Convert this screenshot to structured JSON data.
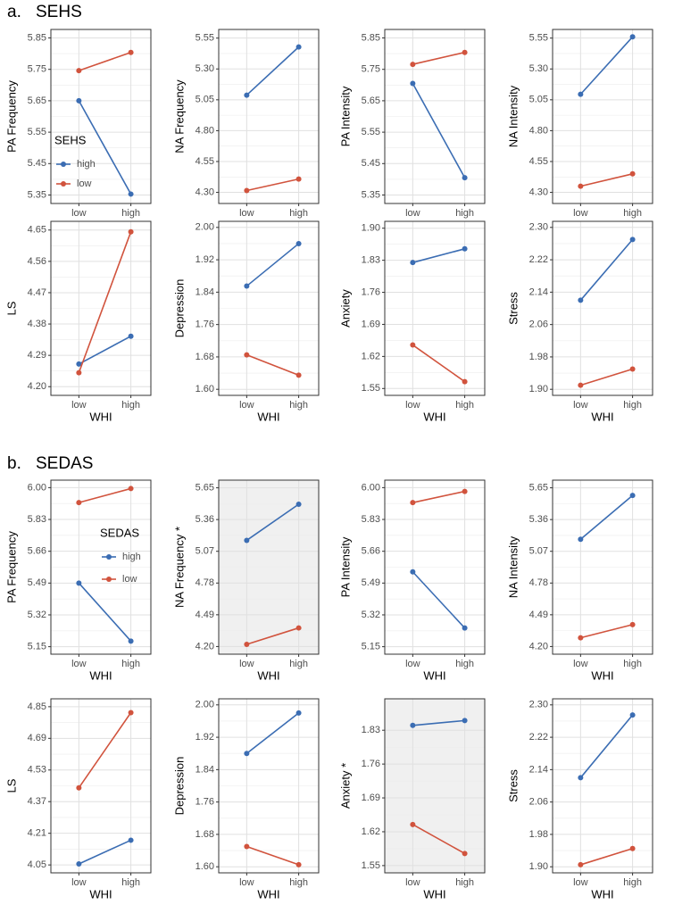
{
  "sections": [
    {
      "label": "a.",
      "title": "SEHS"
    },
    {
      "label": "b.",
      "title": "SEDAS"
    }
  ],
  "chart_data": [
    {
      "type": "line",
      "ylabel": "PA Frequency",
      "xlabel": "WHI",
      "categories": [
        "low",
        "high"
      ],
      "legend": {
        "title": "SEHS",
        "position": "bottom-left"
      },
      "series": [
        {
          "name": "high",
          "color": "#3b6db3",
          "values": [
            5.65,
            5.353
          ]
        },
        {
          "name": "low",
          "color": "#d1533d",
          "values": [
            5.746,
            5.804
          ]
        }
      ],
      "ylim": [
        5.323,
        5.877
      ],
      "yticks": [
        5.35,
        5.45,
        5.55,
        5.65,
        5.75,
        5.85
      ],
      "grid": true,
      "background": "#ffffff"
    },
    {
      "type": "line",
      "ylabel": "NA Frequency",
      "xlabel": "WHI",
      "categories": [
        "low",
        "high"
      ],
      "series": [
        {
          "color": "#3b6db3",
          "values": [
            5.088,
            5.478
          ]
        },
        {
          "color": "#d1533d",
          "values": [
            4.315,
            4.408
          ]
        }
      ],
      "ylim": [
        4.21,
        5.62
      ],
      "yticks": [
        {
          "value": 4.3,
          "label": "4.30"
        },
        4.55,
        {
          "value": 4.8,
          "label": "4.80"
        },
        5.05,
        {
          "value": 5.3,
          "label": "5.30"
        },
        5.55
      ],
      "grid": true,
      "background": "#ffffff"
    },
    {
      "type": "line",
      "ylabel": "PA Intensity",
      "xlabel": "WHI",
      "categories": [
        "low",
        "high"
      ],
      "series": [
        {
          "color": "#3b6db3",
          "values": [
            5.705,
            5.405
          ]
        },
        {
          "color": "#d1533d",
          "values": [
            5.766,
            5.804
          ]
        }
      ],
      "ylim": [
        5.323,
        5.877
      ],
      "yticks": [
        5.35,
        5.45,
        5.55,
        5.65,
        5.75,
        5.85
      ],
      "grid": true,
      "background": "#ffffff"
    },
    {
      "type": "line",
      "ylabel": "NA Intensity",
      "xlabel": "WHI",
      "categories": [
        "low",
        "high"
      ],
      "series": [
        {
          "color": "#3b6db3",
          "values": [
            5.095,
            5.56
          ]
        },
        {
          "color": "#d1533d",
          "values": [
            4.35,
            4.45
          ]
        }
      ],
      "ylim": [
        4.21,
        5.62
      ],
      "yticks": [
        {
          "value": 4.3,
          "label": "4.30"
        },
        4.55,
        {
          "value": 4.8,
          "label": "4.80"
        },
        5.05,
        {
          "value": 5.3,
          "label": "5.30"
        },
        5.55
      ],
      "grid": true,
      "background": "#ffffff"
    },
    {
      "type": "line",
      "ylabel": "LS",
      "xlabel": "WHI",
      "categories": [
        "low",
        "high"
      ],
      "series": [
        {
          "color": "#3b6db3",
          "values": [
            4.265,
            4.345
          ]
        },
        {
          "color": "#d1533d",
          "values": [
            4.24,
            4.645
          ]
        }
      ],
      "ylim": [
        4.175,
        4.675
      ],
      "yticks": [
        {
          "value": 4.2,
          "label": "4.20"
        },
        4.29,
        4.38,
        4.47,
        4.56,
        4.65
      ],
      "grid": true,
      "background": "#ffffff"
    },
    {
      "type": "line",
      "ylabel": "Depression",
      "xlabel": "WHI",
      "categories": [
        "low",
        "high"
      ],
      "series": [
        {
          "color": "#3b6db3",
          "values": [
            1.855,
            1.96
          ]
        },
        {
          "color": "#d1533d",
          "values": [
            1.685,
            1.635
          ]
        }
      ],
      "ylim": [
        1.585,
        2.015
      ],
      "yticks": [
        {
          "value": 1.6,
          "label": "1.60"
        },
        1.68,
        1.76,
        1.84,
        1.92,
        {
          "value": 2,
          "label": "2.00"
        }
      ],
      "grid": true,
      "background": "#ffffff"
    },
    {
      "type": "line",
      "ylabel": "Anxiety",
      "xlabel": "WHI",
      "categories": [
        "low",
        "high"
      ],
      "series": [
        {
          "color": "#3b6db3",
          "values": [
            1.825,
            1.855
          ]
        },
        {
          "color": "#d1533d",
          "values": [
            1.645,
            1.565
          ]
        }
      ],
      "ylim": [
        1.535,
        1.915
      ],
      "yticks": [
        1.55,
        1.62,
        1.69,
        1.76,
        1.83,
        {
          "value": 1.9,
          "label": "1.90"
        }
      ],
      "grid": true,
      "background": "#ffffff"
    },
    {
      "type": "line",
      "ylabel": "Stress",
      "xlabel": "WHI",
      "categories": [
        "low",
        "high"
      ],
      "series": [
        {
          "color": "#3b6db3",
          "values": [
            2.12,
            2.27
          ]
        },
        {
          "color": "#d1533d",
          "values": [
            1.91,
            1.95
          ]
        }
      ],
      "ylim": [
        1.885,
        2.315
      ],
      "yticks": [
        {
          "value": 1.9,
          "label": "1.90"
        },
        1.98,
        2.06,
        2.14,
        2.22,
        {
          "value": 2.3,
          "label": "2.30"
        }
      ],
      "grid": true,
      "background": "#ffffff"
    },
    {
      "type": "line",
      "ylabel": "PA Frequency",
      "xlabel": "WHI",
      "categories": [
        "low",
        "high"
      ],
      "legend": {
        "title": "SEDAS",
        "position": "center-right"
      },
      "series": [
        {
          "name": "high",
          "color": "#3b6db3",
          "values": [
            5.49,
            5.18
          ]
        },
        {
          "name": "low",
          "color": "#d1533d",
          "values": [
            5.92,
            5.995
          ]
        }
      ],
      "ylim": [
        5.11,
        6.04
      ],
      "yticks": [
        5.15,
        5.32,
        5.49,
        5.66,
        5.83,
        {
          "value": 6,
          "label": "6.00"
        }
      ],
      "grid": true,
      "background": "#ffffff"
    },
    {
      "type": "line",
      "ylabel": "NA Frequency *",
      "xlabel": "WHI",
      "categories": [
        "low",
        "high"
      ],
      "series": [
        {
          "color": "#3b6db3",
          "values": [
            5.17,
            5.5
          ]
        },
        {
          "color": "#d1533d",
          "values": [
            4.22,
            4.37
          ]
        }
      ],
      "ylim": [
        4.13,
        5.72
      ],
      "yticks": [
        {
          "value": 4.2,
          "label": "4.20"
        },
        4.49,
        4.78,
        5.07,
        5.36,
        5.65
      ],
      "grid": true,
      "background": "#f0f0f0"
    },
    {
      "type": "line",
      "ylabel": "PA Intensity",
      "xlabel": "WHI",
      "categories": [
        "low",
        "high"
      ],
      "series": [
        {
          "color": "#3b6db3",
          "values": [
            5.55,
            5.25
          ]
        },
        {
          "color": "#d1533d",
          "values": [
            5.92,
            5.98
          ]
        }
      ],
      "ylim": [
        5.11,
        6.04
      ],
      "yticks": [
        5.15,
        5.32,
        5.49,
        5.66,
        5.83,
        {
          "value": 6,
          "label": "6.00"
        }
      ],
      "grid": true,
      "background": "#ffffff"
    },
    {
      "type": "line",
      "ylabel": "NA Intensity",
      "xlabel": "WHI",
      "categories": [
        "low",
        "high"
      ],
      "series": [
        {
          "color": "#3b6db3",
          "values": [
            5.18,
            5.58
          ]
        },
        {
          "color": "#d1533d",
          "values": [
            4.28,
            4.4
          ]
        }
      ],
      "ylim": [
        4.13,
        5.72
      ],
      "yticks": [
        {
          "value": 4.2,
          "label": "4.20"
        },
        4.49,
        4.78,
        5.07,
        5.36,
        5.65
      ],
      "grid": true,
      "background": "#ffffff"
    },
    {
      "type": "line",
      "ylabel": "LS",
      "xlabel": "WHI",
      "categories": [
        "low",
        "high"
      ],
      "series": [
        {
          "color": "#3b6db3",
          "values": [
            4.055,
            4.175
          ]
        },
        {
          "color": "#d1533d",
          "values": [
            4.44,
            4.82
          ]
        }
      ],
      "ylim": [
        4.01,
        4.89
      ],
      "yticks": [
        4.05,
        4.21,
        4.37,
        4.53,
        4.69,
        4.85
      ],
      "grid": true,
      "background": "#ffffff"
    },
    {
      "type": "line",
      "ylabel": "Depression",
      "xlabel": "WHI",
      "categories": [
        "low",
        "high"
      ],
      "series": [
        {
          "color": "#3b6db3",
          "values": [
            1.88,
            1.98
          ]
        },
        {
          "color": "#d1533d",
          "values": [
            1.65,
            1.605
          ]
        }
      ],
      "ylim": [
        1.585,
        2.015
      ],
      "yticks": [
        {
          "value": 1.6,
          "label": "1.60"
        },
        1.68,
        1.76,
        1.84,
        1.92,
        {
          "value": 2,
          "label": "2.00"
        }
      ],
      "grid": true,
      "background": "#ffffff"
    },
    {
      "type": "line",
      "ylabel": "Anxiety *",
      "xlabel": "WHI",
      "categories": [
        "low",
        "high"
      ],
      "series": [
        {
          "color": "#3b6db3",
          "values": [
            1.84,
            1.85
          ]
        },
        {
          "color": "#d1533d",
          "values": [
            1.635,
            1.575
          ]
        }
      ],
      "ylim": [
        1.535,
        1.895
      ],
      "yticks": [
        1.55,
        1.62,
        1.69,
        1.76,
        1.83
      ],
      "grid": true,
      "background": "#f0f0f0"
    },
    {
      "type": "line",
      "ylabel": "Stress",
      "xlabel": "WHI",
      "categories": [
        "low",
        "high"
      ],
      "series": [
        {
          "color": "#3b6db3",
          "values": [
            2.12,
            2.275
          ]
        },
        {
          "color": "#d1533d",
          "values": [
            1.905,
            1.945
          ]
        }
      ],
      "ylim": [
        1.885,
        2.315
      ],
      "yticks": [
        {
          "value": 1.9,
          "label": "1.90"
        },
        1.98,
        2.06,
        2.14,
        2.22,
        {
          "value": 2.3,
          "label": "2.30"
        }
      ],
      "grid": true,
      "background": "#ffffff"
    }
  ]
}
